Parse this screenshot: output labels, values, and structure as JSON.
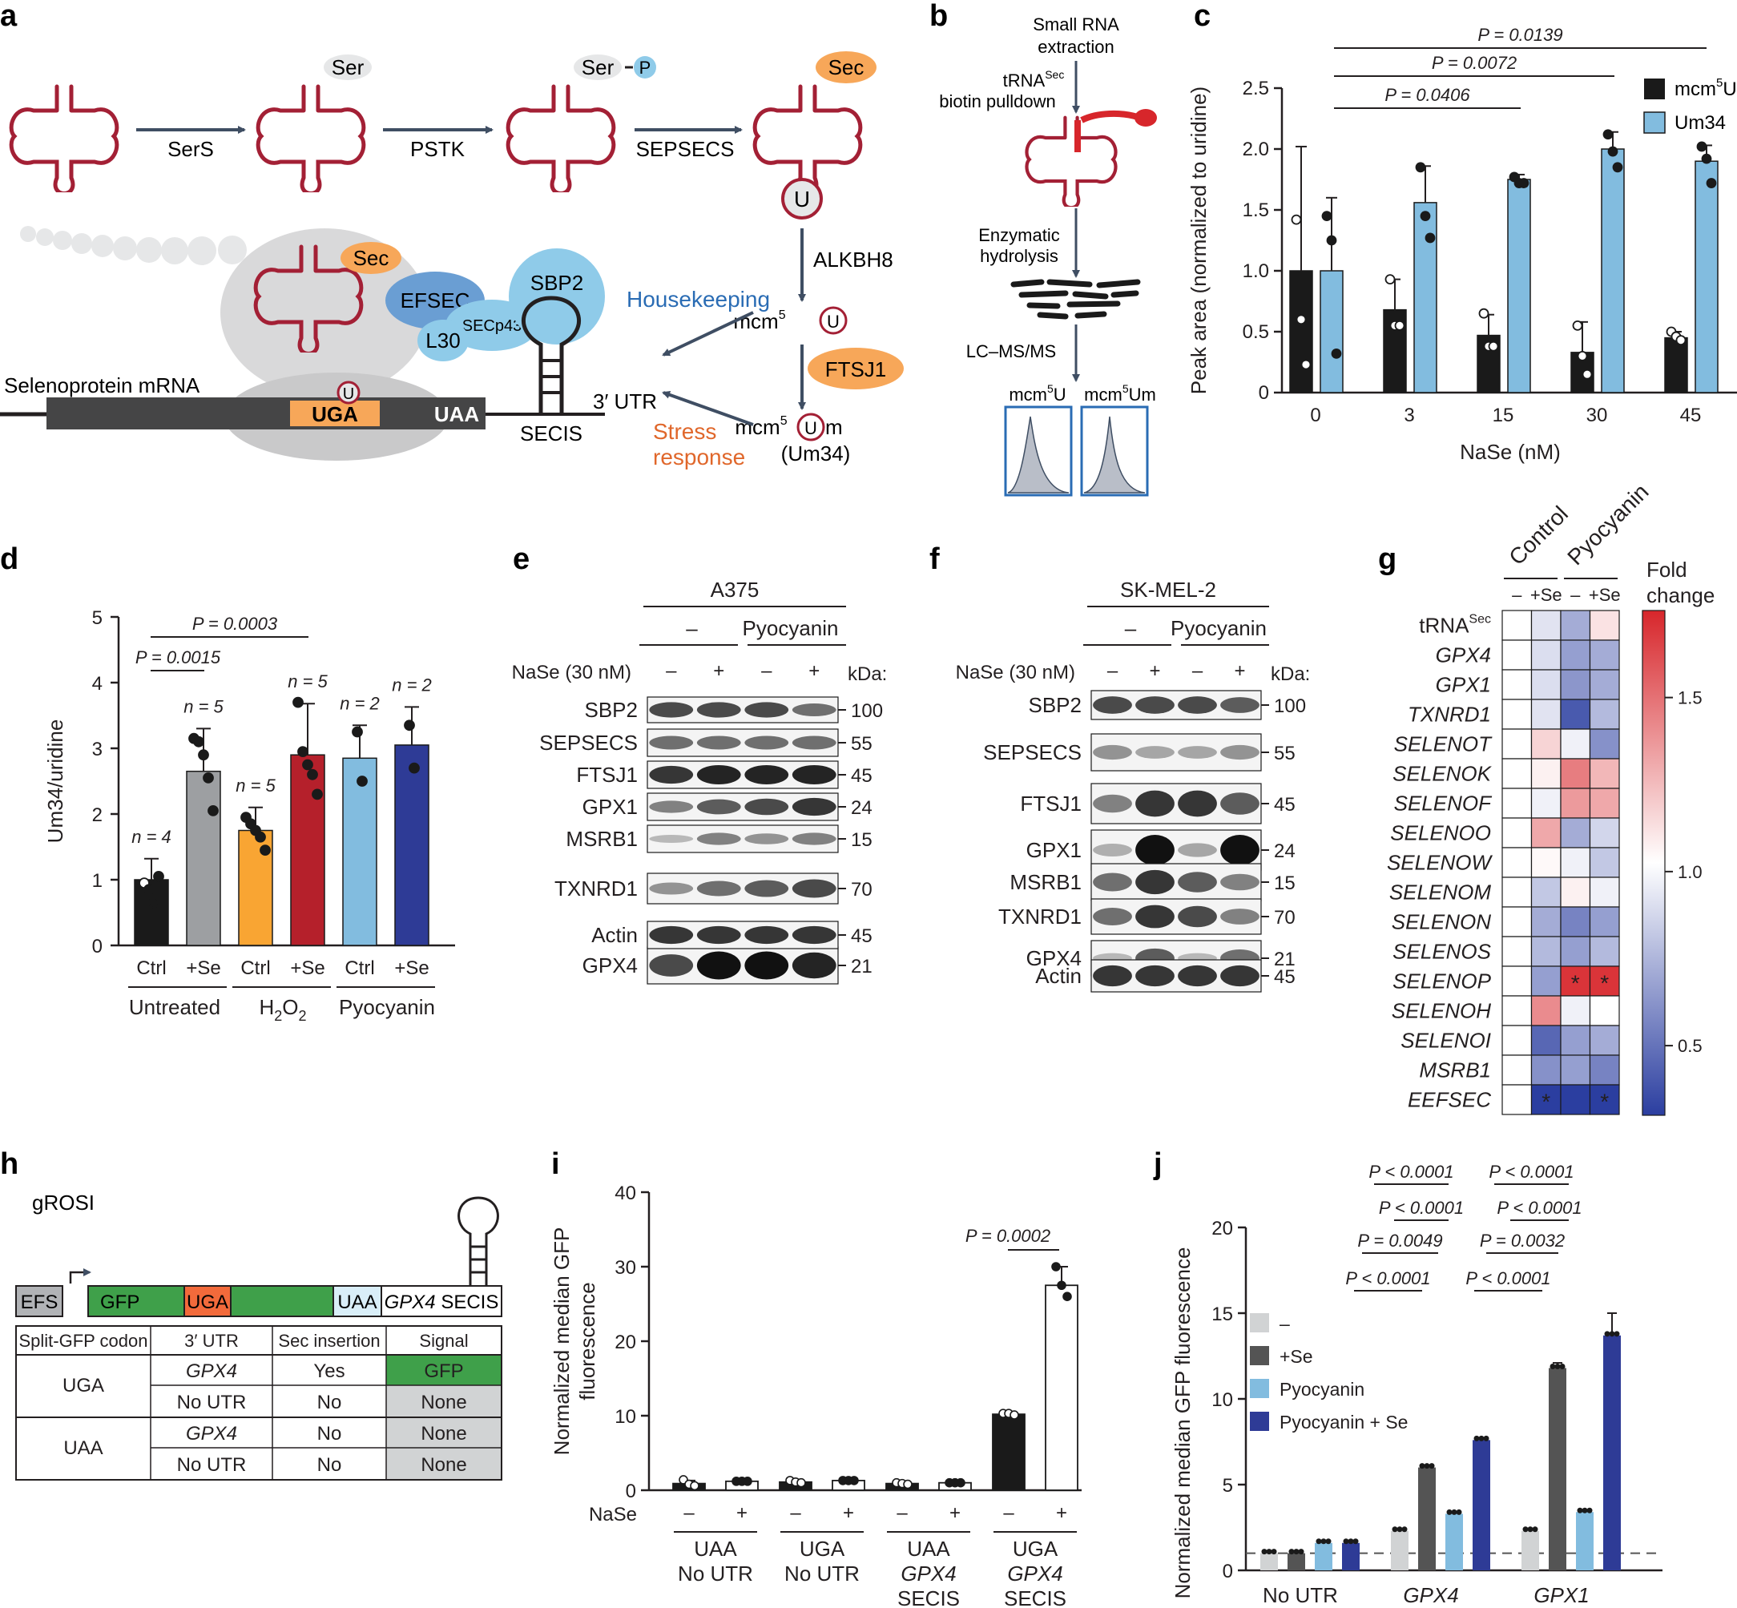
{
  "panel_letters": [
    "a",
    "b",
    "c",
    "d",
    "e",
    "f",
    "g",
    "h",
    "i",
    "j"
  ],
  "a": {
    "aa_ser": "Ser",
    "aa_sec": "Sec",
    "phospho": "P",
    "enzymes": [
      "SerS",
      "PSTK",
      "SEPSECS"
    ],
    "uridine": "U",
    "alkbh8": "ALKBH8",
    "housekeeping": "Housekeeping",
    "mcm5u": "mcm",
    "sup5": "5",
    "ftsj1": "FTSJ1",
    "mcm5um_m": "m",
    "um34": "(Um34)",
    "stress1": "Stress",
    "stress2": "response",
    "efsec": "EFSEC",
    "secp43": "SECp43",
    "l30": "L30",
    "sbp2": "SBP2",
    "mrna": "Selenoprotein mRNA",
    "uga": "UGA",
    "uaa": "UAA",
    "utr": "3′ UTR",
    "secis": "SECIS"
  },
  "b": {
    "step1a": "Small RNA",
    "step1b": "extraction",
    "step2a": "tRNA",
    "step2sup": "Sec",
    "step2b": "biotin pulldown",
    "step3a": "Enzymatic",
    "step3b": "hydrolysis",
    "step4": "LC–MS/MS",
    "lab1": "mcm",
    "lab1b": "U",
    "lab2": "mcm",
    "lab2b": "Um",
    "sup": "5"
  },
  "c": {
    "chart_data": {
      "type": "bar",
      "categories": [
        "0",
        "3",
        "15",
        "30",
        "45"
      ],
      "series": [
        {
          "name": "mcm5U",
          "color": "#1a1a1a",
          "values": [
            1.0,
            0.68,
            0.47,
            0.33,
            0.45
          ],
          "err": [
            1.02,
            0.25,
            0.17,
            0.25,
            0.05
          ],
          "points": [
            [
              1.42,
              0.6,
              0.23
            ],
            [
              0.93,
              0.55,
              0.55
            ],
            [
              0.65,
              0.38,
              0.38
            ],
            [
              0.55,
              0.3,
              0.15
            ],
            [
              0.5,
              0.46,
              0.43
            ]
          ]
        },
        {
          "name": "Um34",
          "color": "#82bcdf",
          "values": [
            1.0,
            1.56,
            1.75,
            2.0,
            1.9
          ],
          "err": [
            0.6,
            0.3,
            0.04,
            0.14,
            0.13
          ],
          "points": [
            [
              1.45,
              1.25,
              0.32
            ],
            [
              1.85,
              1.45,
              1.27
            ],
            [
              1.77,
              1.72,
              1.72
            ],
            [
              2.12,
              1.98,
              1.85
            ],
            [
              2.02,
              1.92,
              1.72
            ]
          ]
        }
      ],
      "xlabel": "NaSe (nM)",
      "ylabel": "Peak area (normalized to uridine)",
      "ylim": [
        0,
        2.5
      ],
      "yticks": [
        "0",
        "0.5",
        "1.0",
        "1.5",
        "2.0",
        "2.5"
      ],
      "legend": [
        "mcm",
        "Um34"
      ],
      "legend_sup": "5",
      "legend_u": "U",
      "pvalues": [
        "P = 0.0139",
        "P = 0.0072",
        "P = 0.0406"
      ]
    }
  },
  "d": {
    "chart_data": {
      "type": "bar",
      "categories": [
        "Ctrl",
        "+Se",
        "Ctrl",
        "+Se",
        "Ctrl",
        "+Se"
      ],
      "values": [
        1.0,
        2.65,
        1.75,
        2.9,
        2.85,
        3.05
      ],
      "err": [
        0.32,
        0.65,
        0.35,
        0.78,
        0.5,
        0.58
      ],
      "colors": [
        "#1a1a1a",
        "#9d9fa2",
        "#f9a533",
        "#b5202b",
        "#82bcdf",
        "#2e3b96"
      ],
      "points": [
        [
          0.95,
          0.85,
          0.65,
          1.05
        ],
        [
          3.15,
          3.1,
          2.9,
          2.55,
          2.05
        ],
        [
          1.95,
          1.85,
          1.75,
          1.65,
          1.45
        ],
        [
          3.7,
          2.95,
          2.75,
          2.6,
          2.3
        ],
        [
          3.25,
          2.5
        ],
        [
          3.35,
          2.7
        ]
      ],
      "n": [
        "n = 4",
        "n = 5",
        "n = 5",
        "n = 5",
        "n = 2",
        "n = 2"
      ],
      "ylabel": "Um34/uridine",
      "ylim": [
        0,
        5
      ],
      "yticks": [
        "0",
        "1",
        "2",
        "3",
        "4",
        "5"
      ],
      "groups": [
        "Untreated",
        "H",
        "Pyocyanin"
      ],
      "h2o2": {
        "h": "H",
        "sub": "2",
        "o": "O"
      },
      "pvalues": [
        "P = 0.0003",
        "P = 0.0015"
      ]
    }
  },
  "e": {
    "cell": "A375",
    "treat_minus": "–",
    "treat_pyo": "Pyocyanin",
    "nase": "NaSe (30 nM)",
    "signs": [
      "–",
      "+",
      "–",
      "+"
    ],
    "kda": "kDa:",
    "blots": [
      "SBP2",
      "SEPSECS",
      "FTSJ1",
      "GPX1",
      "MSRB1",
      "TXNRD1",
      "GPX4",
      "Actin"
    ],
    "sizes": [
      "100",
      "55",
      "45",
      "24",
      "15",
      "70",
      "21",
      "45"
    ]
  },
  "f": {
    "cell": "SK-MEL-2",
    "treat_minus": "–",
    "treat_pyo": "Pyocyanin",
    "nase": "NaSe (30 nM)",
    "signs": [
      "–",
      "+",
      "–",
      "+"
    ],
    "kda": "kDa:",
    "blots": [
      "SBP2",
      "SEPSECS",
      "FTSJ1",
      "GPX1",
      "MSRB1",
      "TXNRD1",
      "GPX4",
      "Actin"
    ],
    "sizes": [
      "100",
      "55",
      "45",
      "24",
      "15",
      "70",
      "21",
      "45"
    ]
  },
  "g": {
    "chart_data": {
      "type": "heatmap",
      "col_groups": [
        "Control",
        "Pyocyanin"
      ],
      "cols": [
        "–",
        "+Se",
        "–",
        "+Se"
      ],
      "rows": [
        "tRNA",
        "GPX4",
        "GPX1",
        "TXNRD1",
        "SELENOT",
        "SELENOK",
        "SELENOF",
        "SELENOO",
        "SELENOW",
        "SELENOM",
        "SELENON",
        "SELENOS",
        "SELENOP",
        "SELENOH",
        "SELENOI",
        "MSRB1",
        "EEFSEC"
      ],
      "row_sup": "Sec",
      "values": [
        [
          1.0,
          0.9,
          0.7,
          1.1
        ],
        [
          1.0,
          0.88,
          0.65,
          0.7
        ],
        [
          1.0,
          0.88,
          0.62,
          0.7
        ],
        [
          1.0,
          0.9,
          0.4,
          0.75
        ],
        [
          1.0,
          1.15,
          0.95,
          0.6
        ],
        [
          1.0,
          1.05,
          1.45,
          1.25
        ],
        [
          1.0,
          0.95,
          1.35,
          1.3
        ],
        [
          1.0,
          1.3,
          0.7,
          0.85
        ],
        [
          1.0,
          1.02,
          0.95,
          0.8
        ],
        [
          1.0,
          0.8,
          1.05,
          0.95
        ],
        [
          1.0,
          0.7,
          0.55,
          0.65
        ],
        [
          1.0,
          0.75,
          0.65,
          0.75
        ],
        [
          1.0,
          0.65,
          1.7,
          1.7
        ],
        [
          1.0,
          1.4,
          0.95,
          1.0
        ],
        [
          1.0,
          0.45,
          0.65,
          0.7
        ],
        [
          1.0,
          0.6,
          0.65,
          0.55
        ],
        [
          1.0,
          0.3,
          0.3,
          0.3
        ]
      ],
      "stars": [
        [
          12,
          2
        ],
        [
          12,
          3
        ],
        [
          16,
          1
        ],
        [
          16,
          3
        ]
      ],
      "star": "*",
      "colorbar_title": [
        "Fold",
        "change"
      ],
      "colorbar_ticks": [
        "1.5",
        "1.0",
        "0.5"
      ],
      "range": [
        0.3,
        1.75
      ]
    }
  },
  "h": {
    "construct": "gROSI",
    "parts": {
      "efs": "EFS",
      "gfp": "GFP",
      "uga": "UGA",
      "uaa": "UAA",
      "gpx4": "GPX4",
      "secis": " SECIS"
    },
    "headers": [
      "Split-GFP codon",
      "3′ UTR",
      "Sec insertion",
      "Signal"
    ],
    "rows": [
      [
        "UGA",
        "GPX4",
        "Yes",
        "GFP"
      ],
      [
        "",
        "No UTR",
        "No",
        "None"
      ],
      [
        "UAA",
        "GPX4",
        "No",
        "None"
      ],
      [
        "",
        "No UTR",
        "No",
        "None"
      ]
    ]
  },
  "i": {
    "chart_data": {
      "type": "bar",
      "values": [
        0.9,
        1.2,
        1.1,
        1.3,
        0.9,
        1.0,
        10.2,
        27.5
      ],
      "err": [
        0.4,
        0.2,
        0.3,
        0.2,
        0.3,
        0.2,
        0.3,
        2.5
      ],
      "points": [
        [
          1.4,
          0.8,
          0.6
        ],
        [
          1.2,
          1.2,
          1.2
        ],
        [
          1.3,
          1.1,
          1.0
        ],
        [
          1.3,
          1.3,
          1.3
        ],
        [
          1.0,
          0.9,
          0.8
        ],
        [
          1.0,
          1.0,
          1.0
        ],
        [
          10.3,
          10.3,
          10.1
        ],
        [
          30,
          27.5,
          26
        ]
      ],
      "fills": [
        "#1a1a1a",
        "#fff",
        "#1a1a1a",
        "#fff",
        "#1a1a1a",
        "#fff",
        "#1a1a1a",
        "#fff"
      ],
      "ylabel": [
        "Normalized median GFP",
        "fluorescence"
      ],
      "ylim": [
        0,
        40
      ],
      "yticks": [
        "0",
        "10",
        "20",
        "30",
        "40"
      ],
      "nase": "NaSe",
      "signs": [
        "–",
        "+",
        "–",
        "+",
        "–",
        "+",
        "–",
        "+"
      ],
      "groups": [
        [
          "UAA",
          "No UTR",
          ""
        ],
        [
          "UGA",
          "No UTR",
          ""
        ],
        [
          "UAA",
          "GPX4",
          "SECIS"
        ],
        [
          "UGA",
          "GPX4",
          "SECIS"
        ]
      ],
      "pvalue": "P = 0.0002"
    }
  },
  "j": {
    "chart_data": {
      "type": "bar",
      "categories": [
        "No UTR",
        "GPX4",
        "GPX1"
      ],
      "series": [
        {
          "name": "–",
          "color": "#d1d3d4",
          "values": [
            1.0,
            2.3,
            2.3
          ]
        },
        {
          "name": "+Se",
          "color": "#545454",
          "values": [
            1.0,
            6.0,
            11.8
          ]
        },
        {
          "name": "Pyocyanin",
          "color": "#82bcdf",
          "values": [
            1.6,
            3.3,
            3.4
          ]
        },
        {
          "name": "Pyocyanin + Se",
          "color": "#2e3b96",
          "values": [
            1.6,
            7.6,
            13.7
          ]
        }
      ],
      "err": [
        [
          0.05,
          0.1,
          0.1
        ],
        [
          0.05,
          0.1,
          0.3
        ],
        [
          0.05,
          0.05,
          0.05
        ],
        [
          0.05,
          0.1,
          1.3
        ]
      ],
      "baseline": 1,
      "ylabel": "Normalized median GFP fluorescence",
      "ylim": [
        0,
        20
      ],
      "yticks": [
        "0",
        "5",
        "10",
        "15",
        "20"
      ],
      "pvalues": [
        "P < 0.0001",
        "P < 0.0001",
        "P = 0.0049",
        "P < 0.0001",
        "P < 0.0001",
        "P < 0.0001",
        "P = 0.0032",
        "P < 0.0001"
      ]
    }
  }
}
